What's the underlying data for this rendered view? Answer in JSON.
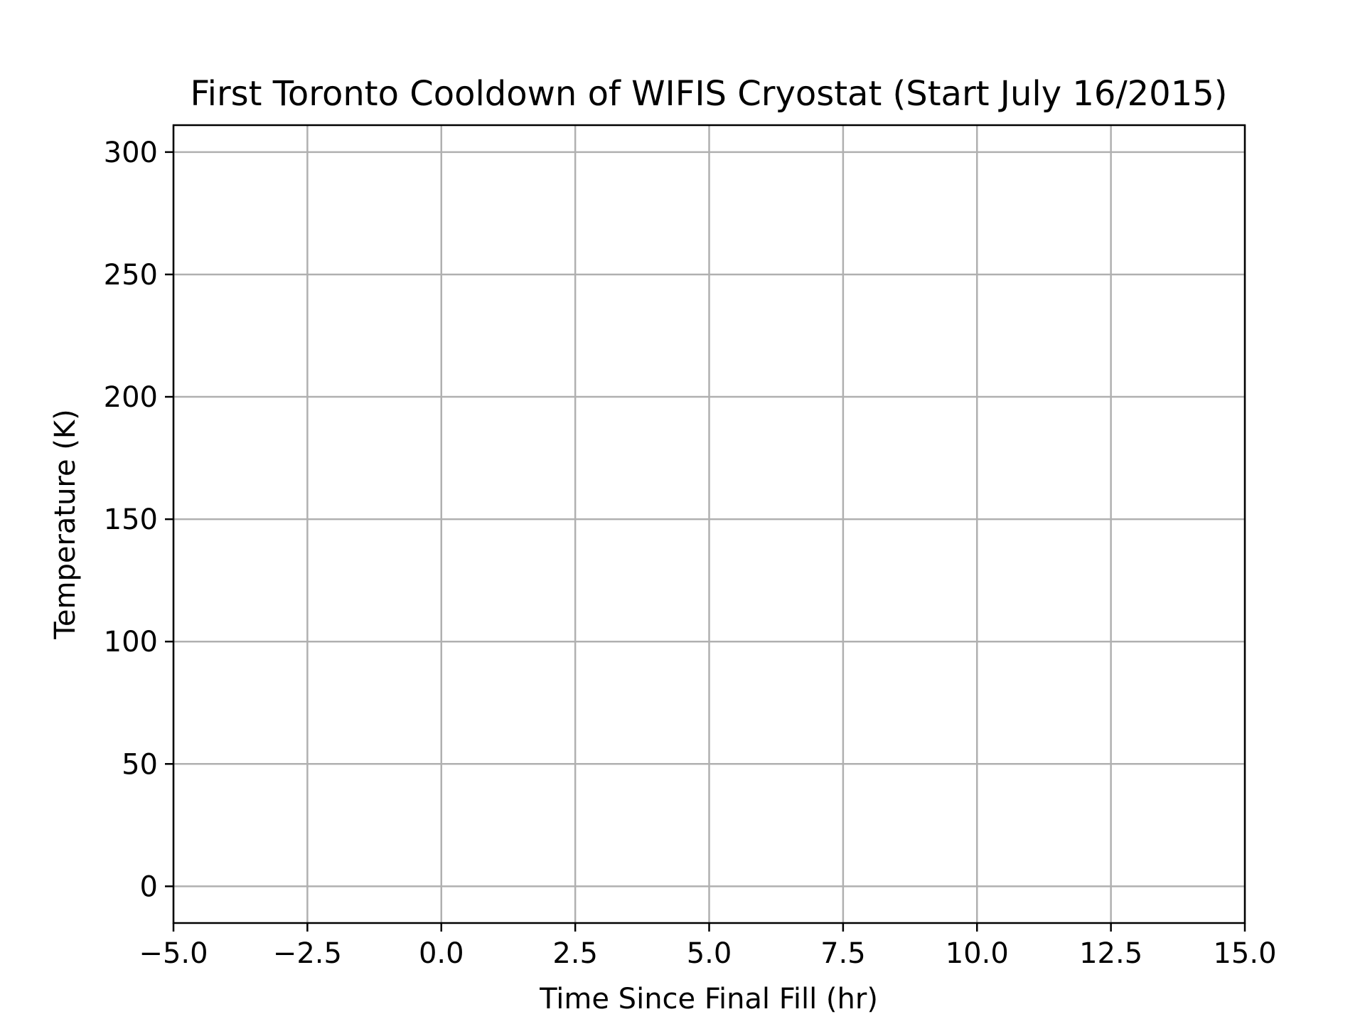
{
  "chart_data": {
    "type": "line",
    "title": "First Toronto Cooldown of WIFIS Cryostat (Start July 16/2015)",
    "xlabel": "Time Since Final Fill (hr)",
    "ylabel": "Temperature (K)",
    "xlim": [
      -5.0,
      15.0
    ],
    "ylim": [
      -15,
      311
    ],
    "xticks": [
      -5.0,
      -2.5,
      0.0,
      2.5,
      5.0,
      7.5,
      10.0,
      12.5,
      15.0
    ],
    "xtick_labels": [
      "−5.0",
      "−2.5",
      "0.0",
      "2.5",
      "5.0",
      "7.5",
      "10.0",
      "12.5",
      "15.0"
    ],
    "yticks": [
      0,
      50,
      100,
      150,
      200,
      250,
      300
    ],
    "ytick_labels": [
      "0",
      "50",
      "100",
      "150",
      "200",
      "250",
      "300"
    ],
    "grid": true,
    "series": []
  }
}
